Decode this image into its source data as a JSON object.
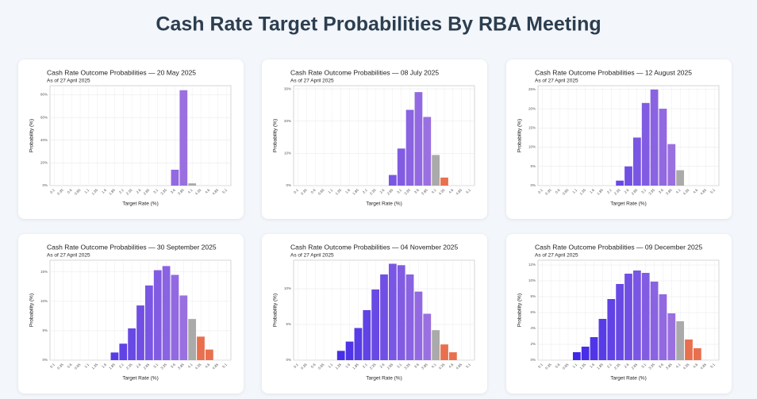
{
  "header": {
    "title": "Cash Rate Target Probabilities By RBA Meeting"
  },
  "chart_data": [
    {
      "type": "bar",
      "title": "Cash Rate Outcome Probabilities — 20 May 2025",
      "subtitle": "As of 27 April 2025",
      "x_label": "Target Rate (%)",
      "y_label": "Probability (%)",
      "categories": [
        "0.1",
        "0.35",
        "0.6",
        "0.85",
        "1.1",
        "1.35",
        "1.6",
        "1.85",
        "2.1",
        "2.35",
        "2.6",
        "2.85",
        "3.1",
        "3.35",
        "3.6",
        "3.85",
        "4.1",
        "4.35",
        "4.6",
        "4.85",
        "5.1"
      ],
      "values": [
        null,
        null,
        null,
        null,
        null,
        null,
        null,
        null,
        null,
        null,
        null,
        null,
        null,
        null,
        14,
        84,
        2,
        null,
        null,
        null,
        null
      ],
      "colors": [
        null,
        null,
        null,
        null,
        null,
        null,
        null,
        null,
        null,
        null,
        null,
        null,
        null,
        null,
        "#9269e1",
        "#9a70e0",
        "#aaaaaa",
        null,
        null,
        null,
        null
      ],
      "ylim": [
        0,
        88
      ],
      "yticks": [
        {
          "value": 0,
          "label": "0%"
        },
        {
          "value": 20,
          "label": "20%"
        },
        {
          "value": 40,
          "label": "40%"
        },
        {
          "value": 60,
          "label": "60%"
        },
        {
          "value": 80,
          "label": "80%"
        }
      ],
      "grid": true
    },
    {
      "type": "bar",
      "title": "Cash Rate Outcome Probabilities — 08 July 2025",
      "subtitle": "As of 27 April 2025",
      "x_label": "Target Rate (%)",
      "y_label": "Probability (%)",
      "categories": [
        "0.1",
        "0.35",
        "0.6",
        "0.85",
        "1.1",
        "1.35",
        "1.6",
        "1.85",
        "2.1",
        "2.35",
        "2.6",
        "2.85",
        "3.1",
        "3.35",
        "3.6",
        "3.85",
        "4.1",
        "4.35",
        "4.6",
        "4.85",
        "5.1"
      ],
      "values": [
        null,
        null,
        null,
        null,
        null,
        null,
        null,
        null,
        null,
        null,
        null,
        3.3,
        11.5,
        23.5,
        29,
        21.3,
        9.5,
        2.5,
        null,
        null,
        null
      ],
      "colors": [
        null,
        null,
        null,
        null,
        null,
        null,
        null,
        null,
        null,
        null,
        null,
        "#7956e3",
        "#815ce2",
        "#8963e1",
        "#9269e1",
        "#9a70e0",
        "#aaaaaa",
        "#e8704f",
        null,
        null,
        null
      ],
      "ylim": [
        0,
        31
      ],
      "yticks": [
        {
          "value": 0,
          "label": "0%"
        },
        {
          "value": 10,
          "label": "10%"
        },
        {
          "value": 20,
          "label": "20%"
        },
        {
          "value": 30,
          "label": "30%"
        }
      ],
      "grid": true
    },
    {
      "type": "bar",
      "title": "Cash Rate Outcome Probabilities — 12 August 2025",
      "subtitle": "As of 27 April 2025",
      "x_label": "Target Rate (%)",
      "y_label": "Probability (%)",
      "categories": [
        "0.1",
        "0.35",
        "0.6",
        "0.85",
        "1.1",
        "1.35",
        "1.6",
        "1.85",
        "2.1",
        "2.35",
        "2.6",
        "2.85",
        "3.1",
        "3.35",
        "3.6",
        "3.85",
        "4.1",
        "4.35",
        "4.6",
        "4.85",
        "5.1"
      ],
      "values": [
        null,
        null,
        null,
        null,
        null,
        null,
        null,
        null,
        null,
        1.3,
        5,
        12.5,
        21.5,
        25,
        20,
        10.8,
        4,
        null,
        null,
        null,
        null
      ],
      "colors": [
        null,
        null,
        null,
        null,
        null,
        null,
        null,
        null,
        null,
        "#6849e4",
        "#714fe4",
        "#7956e3",
        "#815ce2",
        "#8963e1",
        "#9269e1",
        "#9a70e0",
        "#aaaaaa",
        null,
        null,
        null,
        null
      ],
      "ylim": [
        0,
        26
      ],
      "yticks": [
        {
          "value": 0,
          "label": "0%"
        },
        {
          "value": 5,
          "label": "5%"
        },
        {
          "value": 10,
          "label": "10%"
        },
        {
          "value": 15,
          "label": "15%"
        },
        {
          "value": 20,
          "label": "20%"
        },
        {
          "value": 25,
          "label": "25%"
        }
      ],
      "grid": true
    },
    {
      "type": "bar",
      "title": "Cash Rate Outcome Probabilities — 30 September 2025",
      "subtitle": "As of 27 April 2025",
      "x_label": "Target Rate (%)",
      "y_label": "Probability (%)",
      "categories": [
        "0.1",
        "0.35",
        "0.6",
        "0.85",
        "1.1",
        "1.35",
        "1.6",
        "1.85",
        "2.1",
        "2.35",
        "2.6",
        "2.85",
        "3.1",
        "3.35",
        "3.6",
        "3.85",
        "4.1",
        "4.35",
        "4.6",
        "4.85",
        "5.1"
      ],
      "values": [
        null,
        null,
        null,
        null,
        null,
        null,
        null,
        1.3,
        2.8,
        5.4,
        9.3,
        12.7,
        15.3,
        16,
        14.5,
        11,
        7,
        4,
        1.8,
        null,
        null
      ],
      "colors": [
        null,
        null,
        null,
        null,
        null,
        null,
        null,
        "#583ce6",
        "#6042e5",
        "#6849e4",
        "#714fe4",
        "#7956e3",
        "#815ce2",
        "#8963e1",
        "#9269e1",
        "#9a70e0",
        "#aaaaaa",
        "#e8704f",
        "#e8704f",
        null,
        null
      ],
      "ylim": [
        0,
        17
      ],
      "yticks": [
        {
          "value": 0,
          "label": "0%"
        },
        {
          "value": 5,
          "label": "5%"
        },
        {
          "value": 10,
          "label": "10%"
        },
        {
          "value": 15,
          "label": "15%"
        }
      ],
      "grid": true
    },
    {
      "type": "bar",
      "title": "Cash Rate Outcome Probabilities — 04 November 2025",
      "subtitle": "As of 27 April 2025",
      "x_label": "Target Rate (%)",
      "y_label": "Probability (%)",
      "categories": [
        "0.1",
        "0.35",
        "0.6",
        "0.85",
        "1.1",
        "1.35",
        "1.6",
        "1.85",
        "2.1",
        "2.35",
        "2.6",
        "2.85",
        "3.1",
        "3.35",
        "3.6",
        "3.85",
        "4.1",
        "4.35",
        "4.6",
        "4.85",
        "5.1"
      ],
      "values": [
        null,
        null,
        null,
        null,
        null,
        1.3,
        2.6,
        4.5,
        7,
        9.9,
        12,
        13.5,
        13.3,
        12,
        9.6,
        6.5,
        4.2,
        2.2,
        1.1,
        null,
        null
      ],
      "colors": [
        null,
        null,
        null,
        null,
        null,
        "#472ee7",
        "#4f35e6",
        "#583ce6",
        "#6042e5",
        "#6849e4",
        "#714fe4",
        "#7956e3",
        "#815ce2",
        "#8963e1",
        "#9269e1",
        "#9a70e0",
        "#aaaaaa",
        "#e8704f",
        "#e8704f",
        null,
        null
      ],
      "ylim": [
        0,
        14
      ],
      "yticks": [
        {
          "value": 0,
          "label": "0%"
        },
        {
          "value": 5,
          "label": "5%"
        },
        {
          "value": 10,
          "label": "10%"
        }
      ],
      "grid": true
    },
    {
      "type": "bar",
      "title": "Cash Rate Outcome Probabilities — 09 December 2025",
      "subtitle": "As of 27 April 2025",
      "x_label": "Target Rate (%)",
      "y_label": "Probability (%)",
      "categories": [
        "0.1",
        "0.35",
        "0.6",
        "0.85",
        "1.1",
        "1.35",
        "1.6",
        "1.85",
        "2.1",
        "2.35",
        "2.6",
        "2.85",
        "3.1",
        "3.35",
        "3.6",
        "3.85",
        "4.1",
        "4.35",
        "4.6",
        "4.85",
        "5.1"
      ],
      "values": [
        null,
        null,
        null,
        null,
        1,
        1.7,
        2.9,
        5.2,
        7.7,
        9.6,
        10.9,
        11.3,
        11,
        9.9,
        8.3,
        5.9,
        4.9,
        2.6,
        1.5,
        null,
        null
      ],
      "colors": [
        null,
        null,
        null,
        null,
        "#3f28e8",
        "#472ee7",
        "#4f35e6",
        "#583ce6",
        "#6042e5",
        "#6849e4",
        "#714fe4",
        "#7956e3",
        "#815ce2",
        "#8963e1",
        "#9269e1",
        "#9a70e0",
        "#aaaaaa",
        "#e8704f",
        "#e8704f",
        null,
        null
      ],
      "ylim": [
        0,
        12.6
      ],
      "yticks": [
        {
          "value": 0,
          "label": "0%"
        },
        {
          "value": 2,
          "label": "2%"
        },
        {
          "value": 4,
          "label": "4%"
        },
        {
          "value": 6,
          "label": "6%"
        },
        {
          "value": 8,
          "label": "8%"
        },
        {
          "value": 10,
          "label": "10%"
        },
        {
          "value": 12,
          "label": "12%"
        }
      ],
      "grid": true
    }
  ]
}
